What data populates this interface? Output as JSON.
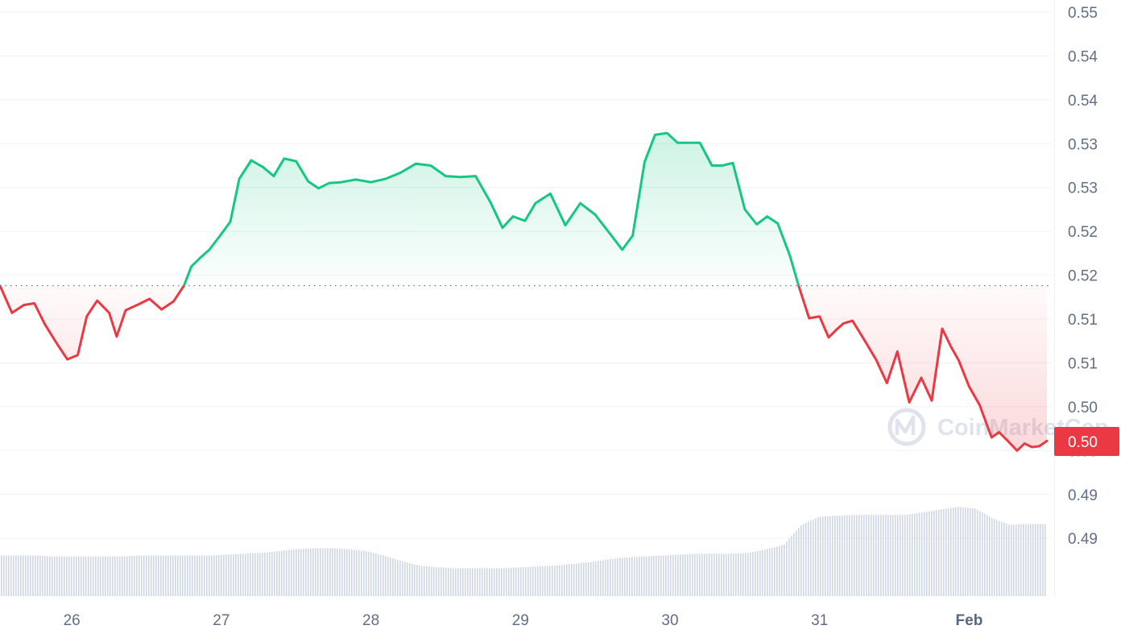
{
  "chart_data": {
    "type": "area",
    "baseline": 0.5183,
    "ylim": [
      0.4875,
      0.5495
    ],
    "y_ticks": [
      {
        "value": 0.5495,
        "label": "0.55"
      },
      {
        "value": 0.5445,
        "label": "0.54"
      },
      {
        "value": 0.5395,
        "label": "0.54"
      },
      {
        "value": 0.5345,
        "label": "0.53"
      },
      {
        "value": 0.5295,
        "label": "0.53"
      },
      {
        "value": 0.5245,
        "label": "0.52"
      },
      {
        "value": 0.5195,
        "label": "0.52"
      },
      {
        "value": 0.5145,
        "label": "0.51"
      },
      {
        "value": 0.5095,
        "label": "0.51"
      },
      {
        "value": 0.5045,
        "label": "0.50"
      },
      {
        "value": 0.4995,
        "label": "0.50"
      },
      {
        "value": 0.4945,
        "label": "0.49"
      },
      {
        "value": 0.4895,
        "label": "0.49"
      }
    ],
    "x_ticks": [
      {
        "day": 26,
        "label": "26",
        "bold": false
      },
      {
        "day": 27,
        "label": "27",
        "bold": false
      },
      {
        "day": 28,
        "label": "28",
        "bold": false
      },
      {
        "day": 29,
        "label": "29",
        "bold": false
      },
      {
        "day": 30,
        "label": "30",
        "bold": false
      },
      {
        "day": 31,
        "label": "31",
        "bold": false
      },
      {
        "day": 32,
        "label": "Feb",
        "bold": true
      }
    ],
    "xlim": [
      25.52,
      32.52
    ],
    "price": {
      "x": [
        25.52,
        25.6,
        25.68,
        25.75,
        25.82,
        25.9,
        25.97,
        26.04,
        26.1,
        26.17,
        26.25,
        26.3,
        26.36,
        26.45,
        26.52,
        26.6,
        26.68,
        26.75,
        26.8,
        26.86,
        26.92,
        27.0,
        27.06,
        27.12,
        27.2,
        27.28,
        27.35,
        27.42,
        27.5,
        27.58,
        27.65,
        27.72,
        27.8,
        27.9,
        28.0,
        28.1,
        28.2,
        28.3,
        28.4,
        28.5,
        28.6,
        28.7,
        28.8,
        28.88,
        28.95,
        29.03,
        29.1,
        29.2,
        29.3,
        29.4,
        29.5,
        29.6,
        29.68,
        29.75,
        29.83,
        29.9,
        29.98,
        30.05,
        30.12,
        30.2,
        30.28,
        30.35,
        30.42,
        30.5,
        30.58,
        30.65,
        30.72,
        30.8,
        30.86,
        30.93,
        31.0,
        31.06,
        31.12,
        31.16,
        31.22,
        31.3,
        31.38,
        31.45,
        31.52,
        31.6,
        31.68,
        31.75,
        31.82,
        31.88,
        31.93,
        32.0,
        32.07,
        32.15,
        32.2,
        32.27,
        32.32,
        32.37,
        32.42,
        32.47,
        32.52
      ],
      "y": [
        0.5183,
        0.5152,
        0.5161,
        0.5163,
        0.5139,
        0.5117,
        0.5099,
        0.5104,
        0.5148,
        0.5166,
        0.5152,
        0.5125,
        0.5155,
        0.5162,
        0.5168,
        0.5156,
        0.5165,
        0.5183,
        0.5205,
        0.5215,
        0.5224,
        0.5242,
        0.5256,
        0.5305,
        0.5326,
        0.5318,
        0.5308,
        0.5328,
        0.5325,
        0.5302,
        0.5294,
        0.53,
        0.5301,
        0.5304,
        0.5301,
        0.5305,
        0.5312,
        0.5322,
        0.532,
        0.5308,
        0.5307,
        0.5308,
        0.5278,
        0.5249,
        0.5262,
        0.5257,
        0.5277,
        0.5288,
        0.5252,
        0.5277,
        0.5264,
        0.5242,
        0.5224,
        0.524,
        0.5324,
        0.5355,
        0.5357,
        0.5346,
        0.5346,
        0.5346,
        0.532,
        0.532,
        0.5323,
        0.527,
        0.5253,
        0.5262,
        0.5254,
        0.5218,
        0.5183,
        0.5146,
        0.5148,
        0.5124,
        0.5134,
        0.514,
        0.5143,
        0.5121,
        0.5098,
        0.5072,
        0.5108,
        0.505,
        0.5078,
        0.5052,
        0.5134,
        0.5113,
        0.5098,
        0.5068,
        0.5047,
        0.501,
        0.5016,
        0.5004,
        0.4995,
        0.5003,
        0.4999,
        0.5,
        0.5006
      ]
    },
    "volume_normalized": [
      0.45,
      0.45,
      0.45,
      0.44,
      0.44,
      0.44,
      0.44,
      0.44,
      0.45,
      0.45,
      0.45,
      0.45,
      0.45,
      0.46,
      0.47,
      0.48,
      0.5,
      0.52,
      0.53,
      0.53,
      0.52,
      0.5,
      0.45,
      0.39,
      0.34,
      0.32,
      0.31,
      0.31,
      0.31,
      0.31,
      0.32,
      0.33,
      0.34,
      0.36,
      0.38,
      0.41,
      0.43,
      0.44,
      0.45,
      0.46,
      0.47,
      0.47,
      0.47,
      0.48,
      0.52,
      0.57,
      0.79,
      0.88,
      0.89,
      0.9,
      0.9,
      0.9,
      0.9,
      0.93,
      0.96,
      0.99,
      0.97,
      0.86,
      0.79,
      0.8,
      0.8
    ],
    "current_price_label": "0.50",
    "up_color": "#16c784",
    "down_color": "#ea3943",
    "watermark": "CoinMarketCap"
  }
}
